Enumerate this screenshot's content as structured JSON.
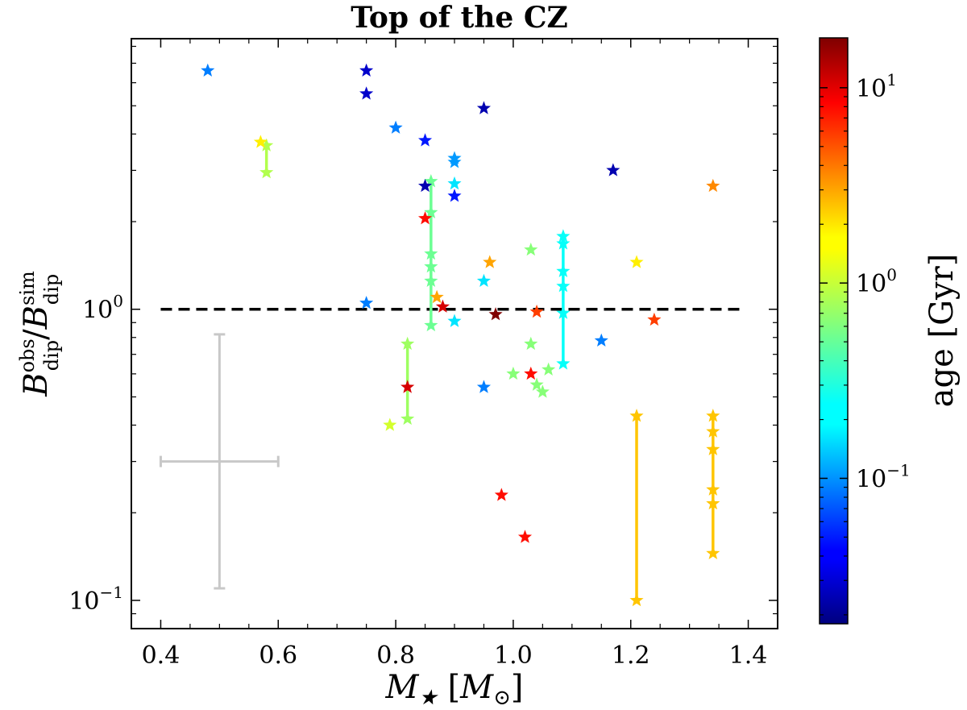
{
  "chart_data": {
    "type": "scatter",
    "title": "Top of the CZ",
    "xlabel": "M★ [M⊙]",
    "ylabel": "Bobsdip / Bsimdip",
    "xlim": [
      0.35,
      1.45
    ],
    "ylim": [
      0.08,
      8.5
    ],
    "yscale": "log",
    "x_ticks": [
      "0.4",
      "0.6",
      "0.8",
      "1.0",
      "1.2",
      "1.4"
    ],
    "x_tick_values": [
      0.4,
      0.6,
      0.8,
      1.0,
      1.2,
      1.4
    ],
    "y_ticks": [
      {
        "value": 1,
        "base": "10",
        "exp": "0"
      },
      {
        "value": 0.1,
        "base": "10",
        "exp": "−1"
      }
    ],
    "reference_line": {
      "y": 1.0,
      "style": "dashed",
      "color": "#000000"
    },
    "error_bar": {
      "x": 0.5,
      "y": 0.3,
      "x_low": 0.4,
      "x_high": 0.6,
      "y_low": 0.11,
      "y_high": 0.82,
      "color": "#c8c8c8"
    },
    "colorbar": {
      "label": "age [Gyr]",
      "scale": "log",
      "range": [
        0.018,
        18
      ],
      "ticks": [
        {
          "value": 0.1,
          "base": "10",
          "exp": "−1"
        },
        {
          "value": 1,
          "base": "10",
          "exp": "0"
        },
        {
          "value": 10,
          "base": "10",
          "exp": "1"
        }
      ],
      "colormap": "jet"
    },
    "points": [
      {
        "x": 0.48,
        "y": 6.6,
        "age": 0.1
      },
      {
        "x": 0.75,
        "y": 6.6,
        "age": 0.03
      },
      {
        "x": 0.75,
        "y": 5.5,
        "age": 0.03
      },
      {
        "x": 0.95,
        "y": 4.9,
        "age": 0.025
      },
      {
        "x": 0.8,
        "y": 4.2,
        "age": 0.1
      },
      {
        "x": 0.85,
        "y": 3.8,
        "age": 0.05
      },
      {
        "x": 0.9,
        "y": 3.3,
        "age": 0.12
      },
      {
        "x": 0.9,
        "y": 3.2,
        "age": 0.12
      },
      {
        "x": 0.9,
        "y": 2.7,
        "age": 0.2
      },
      {
        "x": 0.9,
        "y": 2.45,
        "age": 0.05
      },
      {
        "x": 0.85,
        "y": 2.65,
        "age": 0.025
      },
      {
        "x": 1.17,
        "y": 3.0,
        "age": 0.025
      },
      {
        "x": 1.34,
        "y": 2.65,
        "age": 3.0
      },
      {
        "x": 0.85,
        "y": 2.05,
        "age": 7.0
      },
      {
        "x": 0.96,
        "y": 1.45,
        "age": 2.5
      },
      {
        "x": 1.03,
        "y": 1.6,
        "age": 0.6
      },
      {
        "x": 1.21,
        "y": 1.45,
        "age": 1.5
      },
      {
        "x": 0.95,
        "y": 1.25,
        "age": 0.2
      },
      {
        "x": 0.75,
        "y": 1.05,
        "age": 0.1
      },
      {
        "x": 0.87,
        "y": 1.1,
        "age": 2.5
      },
      {
        "x": 0.88,
        "y": 1.02,
        "age": 10
      },
      {
        "x": 0.97,
        "y": 0.96,
        "age": 18
      },
      {
        "x": 1.04,
        "y": 0.98,
        "age": 5
      },
      {
        "x": 0.9,
        "y": 0.91,
        "age": 0.2
      },
      {
        "x": 1.24,
        "y": 0.92,
        "age": 5
      },
      {
        "x": 1.15,
        "y": 0.78,
        "age": 0.1
      },
      {
        "x": 1.03,
        "y": 0.76,
        "age": 0.6
      },
      {
        "x": 1.03,
        "y": 0.6,
        "age": 7
      },
      {
        "x": 1.0,
        "y": 0.6,
        "age": 0.6
      },
      {
        "x": 1.06,
        "y": 0.62,
        "age": 0.6
      },
      {
        "x": 1.04,
        "y": 0.55,
        "age": 0.6
      },
      {
        "x": 1.05,
        "y": 0.52,
        "age": 0.6
      },
      {
        "x": 0.95,
        "y": 0.54,
        "age": 0.1
      },
      {
        "x": 0.82,
        "y": 0.54,
        "age": 10
      },
      {
        "x": 0.79,
        "y": 0.4,
        "age": 1.0
      },
      {
        "x": 0.98,
        "y": 0.23,
        "age": 7
      },
      {
        "x": 1.02,
        "y": 0.165,
        "age": 7
      },
      {
        "x": 0.57,
        "y": 3.75,
        "age": 1.5
      }
    ],
    "connected_series": [
      {
        "x": 0.58,
        "age": 0.8,
        "y": [
          3.65,
          2.95
        ]
      },
      {
        "x": 0.86,
        "age": 0.5,
        "y": [
          2.75,
          2.15,
          1.55,
          1.4,
          1.25,
          0.88
        ]
      },
      {
        "x": 0.82,
        "age": 0.7,
        "y": [
          0.76,
          0.42
        ]
      },
      {
        "x": 1.085,
        "age": 0.25,
        "y": [
          1.78,
          1.68,
          1.35,
          1.2,
          0.97,
          0.65
        ]
      },
      {
        "x": 1.21,
        "age": 2.0,
        "y": [
          0.43,
          0.1
        ]
      },
      {
        "x": 1.34,
        "age": 2.0,
        "y": [
          0.43,
          0.38,
          0.33,
          0.24,
          0.215,
          0.145
        ]
      }
    ]
  }
}
